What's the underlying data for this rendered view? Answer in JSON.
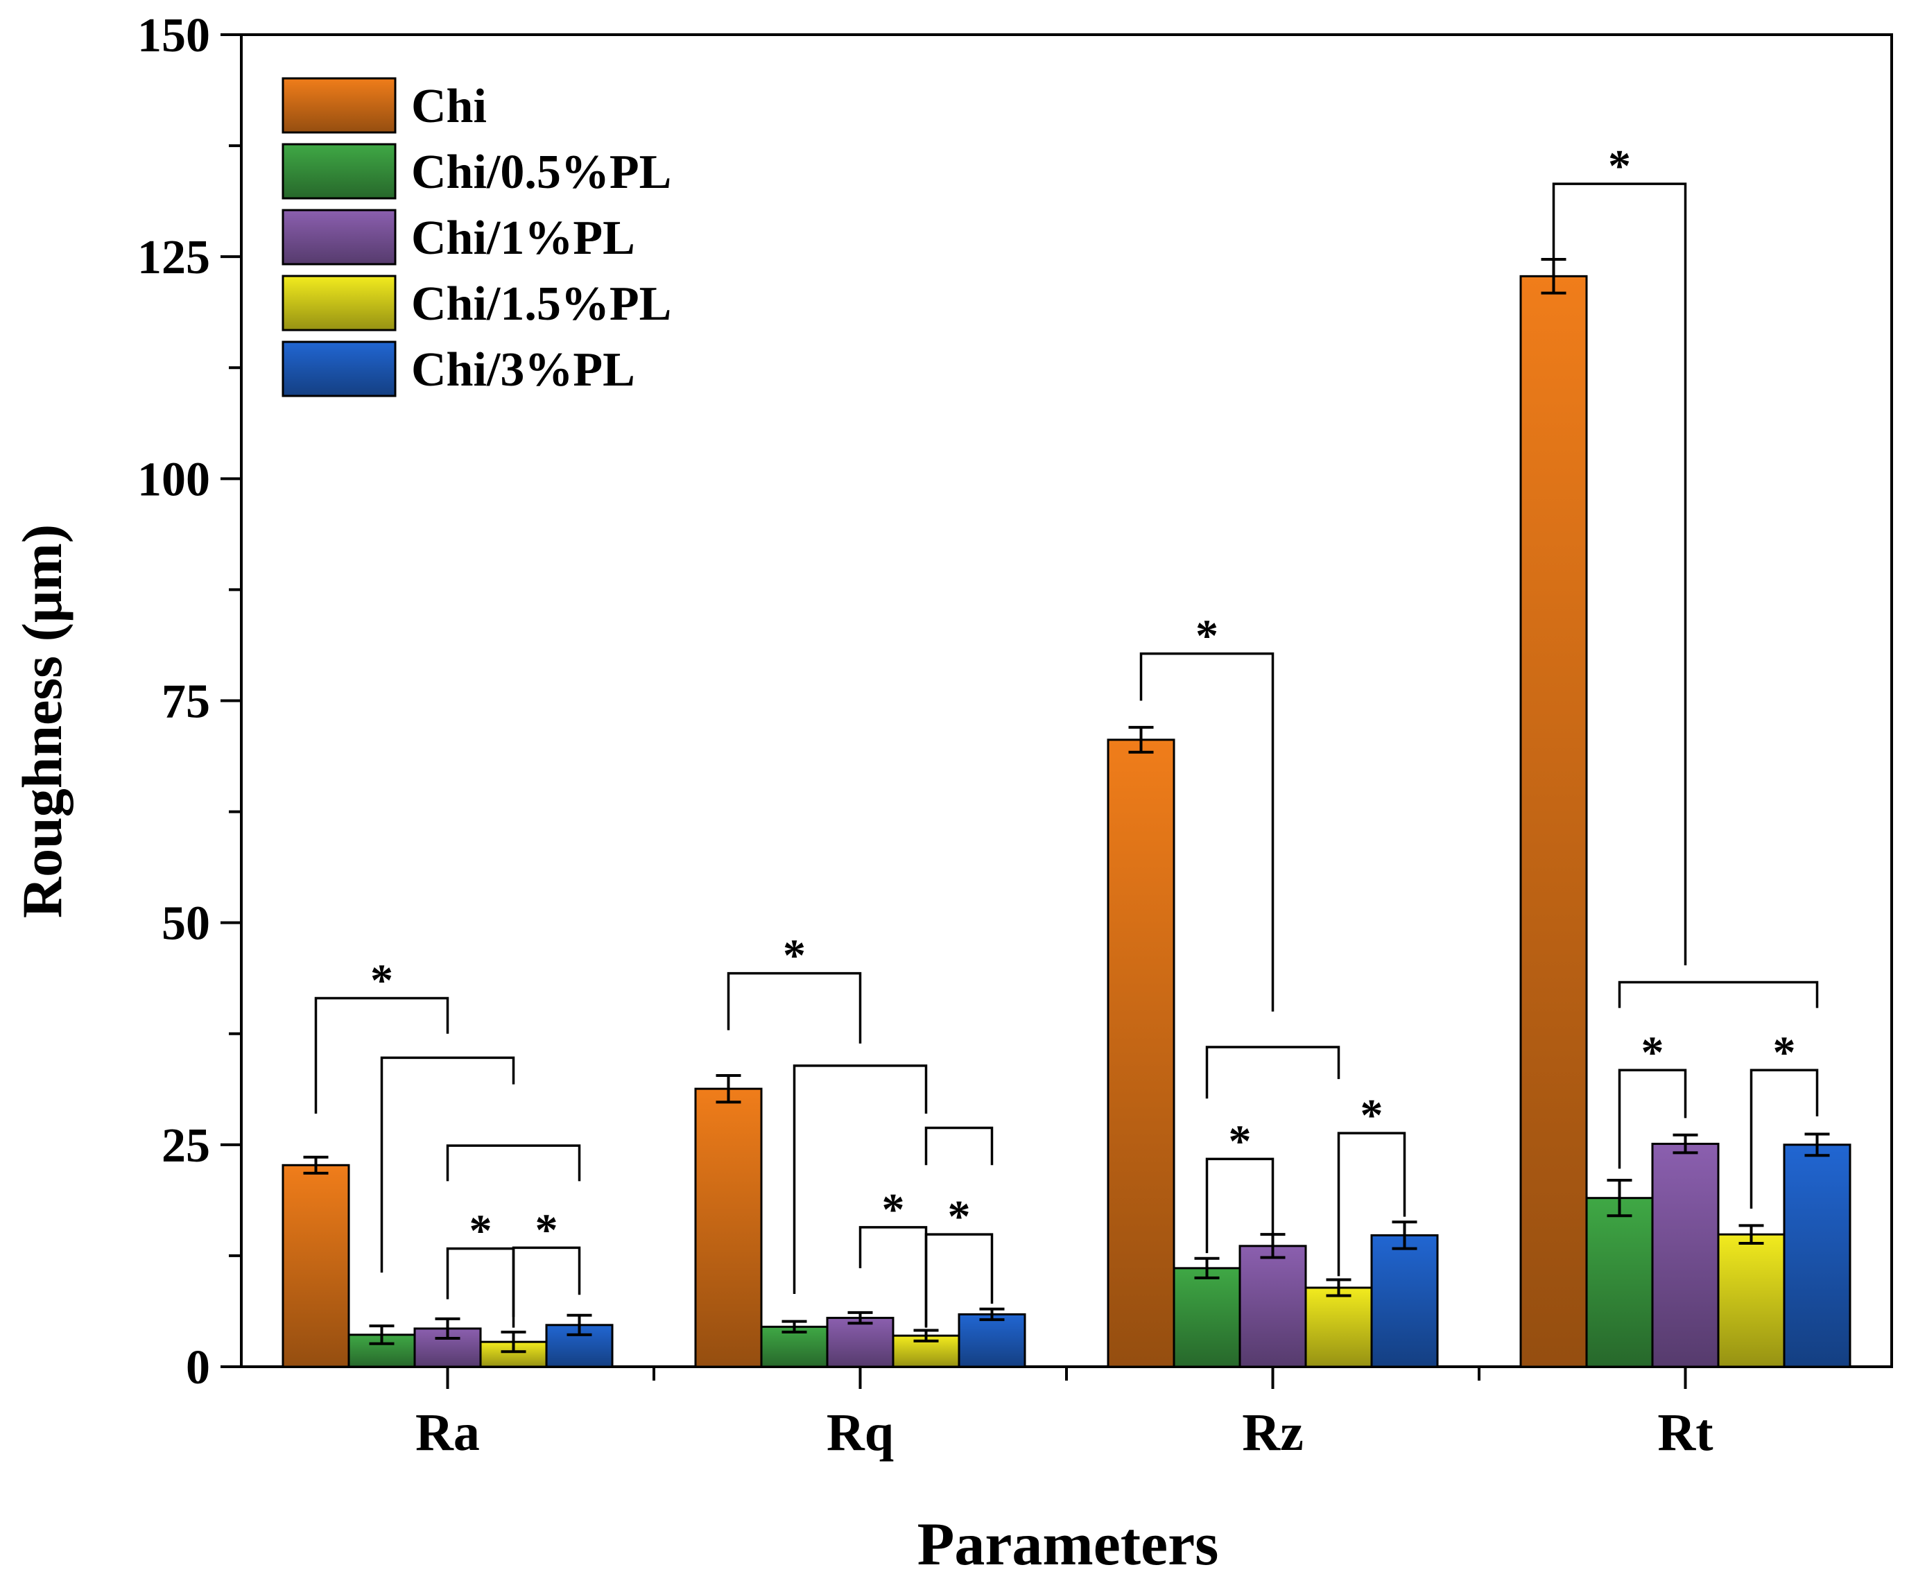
{
  "chart_data": {
    "type": "bar",
    "title": "",
    "xlabel": "Parameters",
    "ylabel": "Roughness (μm)",
    "ylim": [
      0,
      150
    ],
    "yticks": [
      0,
      25,
      50,
      75,
      100,
      125,
      150
    ],
    "categories": [
      "Ra",
      "Rq",
      "Rz",
      "Rt"
    ],
    "legend_position": "top-left",
    "significance_label": "*",
    "series": [
      {
        "name": "Chi",
        "color": "#F07D1A",
        "values": [
          22.7,
          31.3,
          70.6,
          122.8
        ],
        "errors": [
          0.9,
          1.5,
          1.4,
          1.9
        ]
      },
      {
        "name": "Chi/0.5%PL",
        "color": "#3FA845",
        "values": [
          3.6,
          4.5,
          11.1,
          19.0
        ],
        "errors": [
          1.0,
          0.6,
          1.1,
          2.0
        ]
      },
      {
        "name": "Chi/1%PL",
        "color": "#8B5FAF",
        "values": [
          4.3,
          5.5,
          13.6,
          25.1
        ],
        "errors": [
          1.1,
          0.6,
          1.3,
          1.0
        ]
      },
      {
        "name": "Chi/1.5%PL",
        "color": "#F2EB1E",
        "values": [
          2.8,
          3.5,
          8.9,
          14.9
        ],
        "errors": [
          1.1,
          0.6,
          0.9,
          1.0
        ]
      },
      {
        "name": "Chi/3%PL",
        "color": "#2166D2",
        "values": [
          4.7,
          5.9,
          14.8,
          25.0
        ],
        "errors": [
          1.1,
          0.6,
          1.5,
          1.2
        ]
      }
    ],
    "significance_brackets": [
      {
        "category": "Ra",
        "from": 0,
        "to": 2,
        "top": 41.5,
        "left_drop": 13,
        "right_drop": 4,
        "star": true
      },
      {
        "category": "Ra",
        "from": 1,
        "to": 3,
        "top": 34.8,
        "left_drop": 24.2,
        "right_drop": 3,
        "star": false
      },
      {
        "category": "Ra",
        "from": 2,
        "to": 4,
        "top": 24.9,
        "left_drop": 4.0,
        "right_drop": 4.0,
        "star": false
      },
      {
        "category": "Ra",
        "from": 2,
        "to": 3,
        "top": 13.3,
        "left_drop": 5.7,
        "right_drop": 8.9,
        "star": true
      },
      {
        "category": "Ra",
        "from": 3,
        "to": 4,
        "top": 13.4,
        "left_drop": 7.8,
        "right_drop": 5.3,
        "star": true
      },
      {
        "category": "Rq",
        "from": 0,
        "to": 2,
        "top": 44.3,
        "left_drop": 6.4,
        "right_drop": 7.9,
        "star": true
      },
      {
        "category": "Rq",
        "from": 1,
        "to": 3,
        "top": 33.9,
        "left_drop": 25.7,
        "right_drop": 5.4,
        "star": false
      },
      {
        "category": "Rq",
        "from": 3,
        "to": 4,
        "top": 26.9,
        "left_drop": 4.2,
        "right_drop": 4.2,
        "star": false
      },
      {
        "category": "Rq",
        "from": 2,
        "to": 3,
        "top": 15.7,
        "left_drop": 4.6,
        "right_drop": 11.3,
        "star": true
      },
      {
        "category": "Rq",
        "from": 3,
        "to": 4,
        "top": 14.9,
        "left_drop": 10.4,
        "right_drop": 7.8,
        "star": true
      },
      {
        "category": "Rz",
        "from": 0,
        "to": 2,
        "top": 80.3,
        "left_drop": 5.3,
        "right_drop": 40.3,
        "star": true
      },
      {
        "category": "Rz",
        "from": 1,
        "to": 3,
        "top": 36.0,
        "left_drop": 5.8,
        "right_drop": 3.6,
        "star": false
      },
      {
        "category": "Rz",
        "from": 1,
        "to": 2,
        "top": 23.4,
        "left_drop": 10.6,
        "right_drop": 8.4,
        "star": true
      },
      {
        "category": "Rz",
        "from": 3,
        "to": 4,
        "top": 26.3,
        "left_drop": 16.1,
        "right_drop": 9.4,
        "star": true
      },
      {
        "category": "Rt",
        "from": 0,
        "to": 2,
        "top": 133.2,
        "left_drop": 8.5,
        "right_drop": 88.0,
        "star": true
      },
      {
        "category": "Rt",
        "from": 1,
        "to": 4,
        "top": 43.3,
        "left_drop": 2.9,
        "right_drop": 2.9,
        "star": false
      },
      {
        "category": "Rt",
        "from": 1,
        "to": 2,
        "top": 33.4,
        "left_drop": 11.1,
        "right_drop": 5.4,
        "star": true
      },
      {
        "category": "Rt",
        "from": 3,
        "to": 4,
        "top": 33.4,
        "left_drop": 15.6,
        "right_drop": 5.2,
        "star": true
      }
    ]
  }
}
